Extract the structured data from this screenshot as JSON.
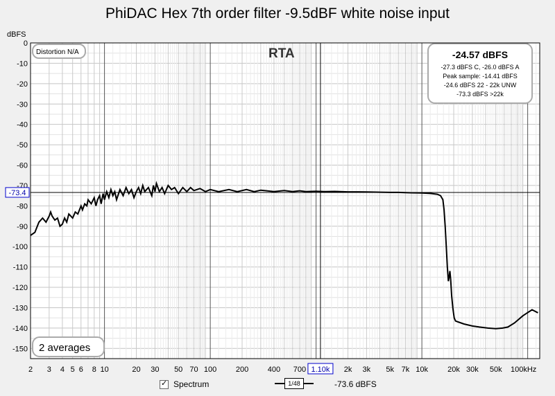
{
  "chart_data": {
    "type": "line",
    "title": "PhiDAC Hex 7th order filter -9.5dBF white noise input",
    "ylabel": "dBFS",
    "xlabel": "",
    "xscale": "log",
    "xlim": [
      2,
      130000
    ],
    "ylim": [
      -155,
      0
    ],
    "yticks": [
      0,
      -10,
      -20,
      -30,
      -40,
      -50,
      -60,
      -70,
      -80,
      -90,
      -100,
      -110,
      -120,
      -130,
      -140,
      -150
    ],
    "xtick_labels": [
      {
        "v": 2,
        "t": "2"
      },
      {
        "v": 3,
        "t": "3"
      },
      {
        "v": 4,
        "t": "4"
      },
      {
        "v": 5,
        "t": "5"
      },
      {
        "v": 6,
        "t": "6"
      },
      {
        "v": 8,
        "t": "8"
      },
      {
        "v": 10,
        "t": "10"
      },
      {
        "v": 20,
        "t": "20"
      },
      {
        "v": 30,
        "t": "30"
      },
      {
        "v": 50,
        "t": "50"
      },
      {
        "v": 70,
        "t": "70"
      },
      {
        "v": 100,
        "t": "100"
      },
      {
        "v": 200,
        "t": "200"
      },
      {
        "v": 400,
        "t": "400"
      },
      {
        "v": 700,
        "t": "700"
      },
      {
        "v": 2000,
        "t": "2k"
      },
      {
        "v": 3000,
        "t": "3k"
      },
      {
        "v": 5000,
        "t": "5k"
      },
      {
        "v": 7000,
        "t": "7k"
      },
      {
        "v": 10000,
        "t": "10k"
      },
      {
        "v": 20000,
        "t": "20k"
      },
      {
        "v": 30000,
        "t": "30k"
      },
      {
        "v": 50000,
        "t": "50k"
      },
      {
        "v": 100000,
        "t": "100kHz"
      }
    ],
    "grid": true,
    "series": [
      {
        "color": "#000000",
        "points": [
          [
            2.0,
            -94.5
          ],
          [
            2.2,
            -93
          ],
          [
            2.4,
            -88
          ],
          [
            2.6,
            -86
          ],
          [
            2.8,
            -88
          ],
          [
            3.0,
            -85
          ],
          [
            3.1,
            -83
          ],
          [
            3.2,
            -85
          ],
          [
            3.4,
            -87
          ],
          [
            3.6,
            -86
          ],
          [
            3.8,
            -90
          ],
          [
            4.0,
            -89
          ],
          [
            4.2,
            -86
          ],
          [
            4.4,
            -88
          ],
          [
            4.6,
            -84
          ],
          [
            4.8,
            -85
          ],
          [
            5.0,
            -86
          ],
          [
            5.3,
            -83
          ],
          [
            5.6,
            -84
          ],
          [
            6.0,
            -80
          ],
          [
            6.2,
            -82
          ],
          [
            6.5,
            -79
          ],
          [
            6.8,
            -80
          ],
          [
            7.0,
            -77
          ],
          [
            7.5,
            -79
          ],
          [
            8.0,
            -76
          ],
          [
            8.3,
            -80
          ],
          [
            8.6,
            -77
          ],
          [
            9.0,
            -75
          ],
          [
            9.3,
            -79
          ],
          [
            9.7,
            -74
          ],
          [
            10.0,
            -77
          ],
          [
            10.5,
            -73
          ],
          [
            11,
            -76
          ],
          [
            11.5,
            -72
          ],
          [
            12,
            -75
          ],
          [
            12.5,
            -73
          ],
          [
            13,
            -77
          ],
          [
            14,
            -72
          ],
          [
            15,
            -75
          ],
          [
            16,
            -71
          ],
          [
            17,
            -74
          ],
          [
            18,
            -72
          ],
          [
            19,
            -76
          ],
          [
            20,
            -73
          ],
          [
            21,
            -71
          ],
          [
            22,
            -74
          ],
          [
            23,
            -70
          ],
          [
            24,
            -73
          ],
          [
            26,
            -71
          ],
          [
            28,
            -75
          ],
          [
            29,
            -70
          ],
          [
            30,
            -73
          ],
          [
            31,
            -69
          ],
          [
            33,
            -73
          ],
          [
            35,
            -71
          ],
          [
            37,
            -74
          ],
          [
            40,
            -70
          ],
          [
            43,
            -72
          ],
          [
            46,
            -71
          ],
          [
            50,
            -74
          ],
          [
            55,
            -71
          ],
          [
            60,
            -73
          ],
          [
            65,
            -71
          ],
          [
            70,
            -72.5
          ],
          [
            80,
            -71.5
          ],
          [
            90,
            -73
          ],
          [
            100,
            -72
          ],
          [
            120,
            -73
          ],
          [
            150,
            -72
          ],
          [
            180,
            -73
          ],
          [
            220,
            -72
          ],
          [
            260,
            -73
          ],
          [
            300,
            -72.3
          ],
          [
            400,
            -73
          ],
          [
            500,
            -72.5
          ],
          [
            600,
            -73
          ],
          [
            700,
            -72.6
          ],
          [
            800,
            -73
          ],
          [
            1000,
            -72.8
          ],
          [
            1200,
            -73
          ],
          [
            1500,
            -72.9
          ],
          [
            2000,
            -73.1
          ],
          [
            2500,
            -73.1
          ],
          [
            3000,
            -73.2
          ],
          [
            4000,
            -73.3
          ],
          [
            5000,
            -73.4
          ],
          [
            6000,
            -73.4
          ],
          [
            7000,
            -73.5
          ],
          [
            8000,
            -73.6
          ],
          [
            10000,
            -73.7
          ],
          [
            12000,
            -73.9
          ],
          [
            14000,
            -74.3
          ],
          [
            15000,
            -75
          ],
          [
            15800,
            -77
          ],
          [
            16200,
            -82
          ],
          [
            16600,
            -90
          ],
          [
            17000,
            -100
          ],
          [
            17400,
            -110
          ],
          [
            17800,
            -117
          ],
          [
            18100,
            -115
          ],
          [
            18400,
            -112
          ],
          [
            18700,
            -116
          ],
          [
            19100,
            -124
          ],
          [
            19600,
            -130
          ],
          [
            20200,
            -135
          ],
          [
            20800,
            -136.5
          ],
          [
            22000,
            -137
          ],
          [
            25000,
            -138
          ],
          [
            30000,
            -139
          ],
          [
            35000,
            -139.5
          ],
          [
            42000,
            -140
          ],
          [
            50000,
            -140.3
          ],
          [
            58000,
            -140
          ],
          [
            65000,
            -139.5
          ],
          [
            75000,
            -137.5
          ],
          [
            90000,
            -134
          ],
          [
            110000,
            -131
          ],
          [
            125000,
            -132.5
          ]
        ]
      }
    ],
    "annotations": {
      "rta": "RTA",
      "distortion": "Distortion N/A",
      "averages": "2 averages",
      "cursor_y": "-73.4",
      "cursor_x": "1.10k",
      "stats_headline": "-24.57 dBFS",
      "stats_lines": [
        "-27.3 dBFS C, -26.0 dBFS A",
        "Peak sample: -14.41 dBFS",
        "-24.6 dBFS 22 - 22k UNW",
        "-73.3 dBFS >22k"
      ]
    }
  },
  "legend": {
    "spectrum_label": "Spectrum",
    "smoothing": "1/48",
    "smoothing_num": "1",
    "smoothing_den": "48",
    "cursor_value": "-73.6 dBFS"
  }
}
